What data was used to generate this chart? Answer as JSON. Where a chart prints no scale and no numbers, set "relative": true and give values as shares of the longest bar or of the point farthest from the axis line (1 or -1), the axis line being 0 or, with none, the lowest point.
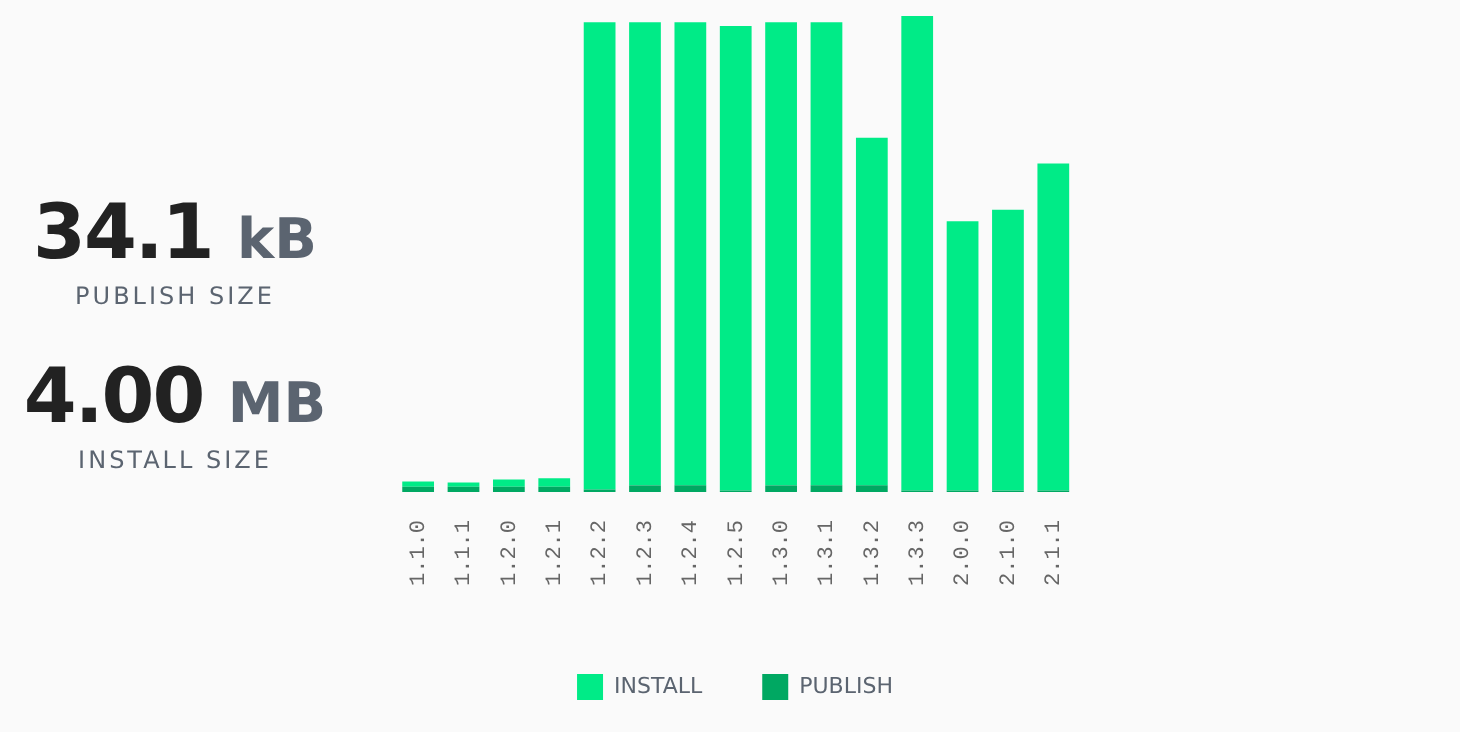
{
  "chart_data": {
    "type": "bar",
    "relative": true,
    "stacked": true,
    "categories": [
      "1.1.0",
      "1.1.1",
      "1.2.0",
      "1.2.1",
      "1.2.2",
      "1.2.3",
      "1.2.4",
      "1.2.5",
      "1.3.0",
      "1.3.1",
      "1.3.2",
      "1.3.3",
      "2.0.0",
      "2.1.0",
      "2.1.1"
    ],
    "series": [
      {
        "name": "PUBLISH",
        "color": "#00a862",
        "values": [
          0.011,
          0.011,
          0.011,
          0.011,
          0.005,
          0.014,
          0.014,
          0.003,
          0.014,
          0.014,
          0.014,
          0.003,
          0.003,
          0.003,
          0.003
        ]
      },
      {
        "name": "INSTALL",
        "color": "#00eb87",
        "values": [
          0.011,
          0.009,
          0.015,
          0.018,
          0.982,
          0.973,
          0.973,
          0.976,
          0.973,
          0.973,
          0.73,
          0.997,
          0.566,
          0.59,
          0.687
        ]
      }
    ],
    "legend": "bottom",
    "grid": false,
    "annotations": [
      "34.1 kB",
      "PUBLISH SIZE",
      "4.00 MB",
      "INSTALL SIZE"
    ]
  }
}
